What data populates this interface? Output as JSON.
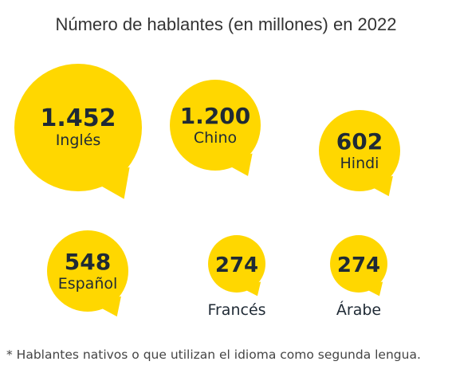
{
  "chart_data": {
    "type": "bubble",
    "title": "Número de hablantes (en millones) en 2022",
    "categories": [
      "Inglés",
      "Chino",
      "Hindi",
      "Español",
      "Francés",
      "Árabe"
    ],
    "value_labels": [
      "1.452",
      "1.200",
      "602",
      "548",
      "274",
      "274"
    ],
    "values": [
      1452,
      1200,
      602,
      548,
      274,
      274
    ],
    "units": "millones",
    "footnote": "* Hablantes nativos o que utilizan el idioma como segunda lengua.",
    "colors": {
      "bubble": "#FFD700",
      "text": "#1f2a35",
      "title": "#333333",
      "footnote": "#444444"
    }
  }
}
